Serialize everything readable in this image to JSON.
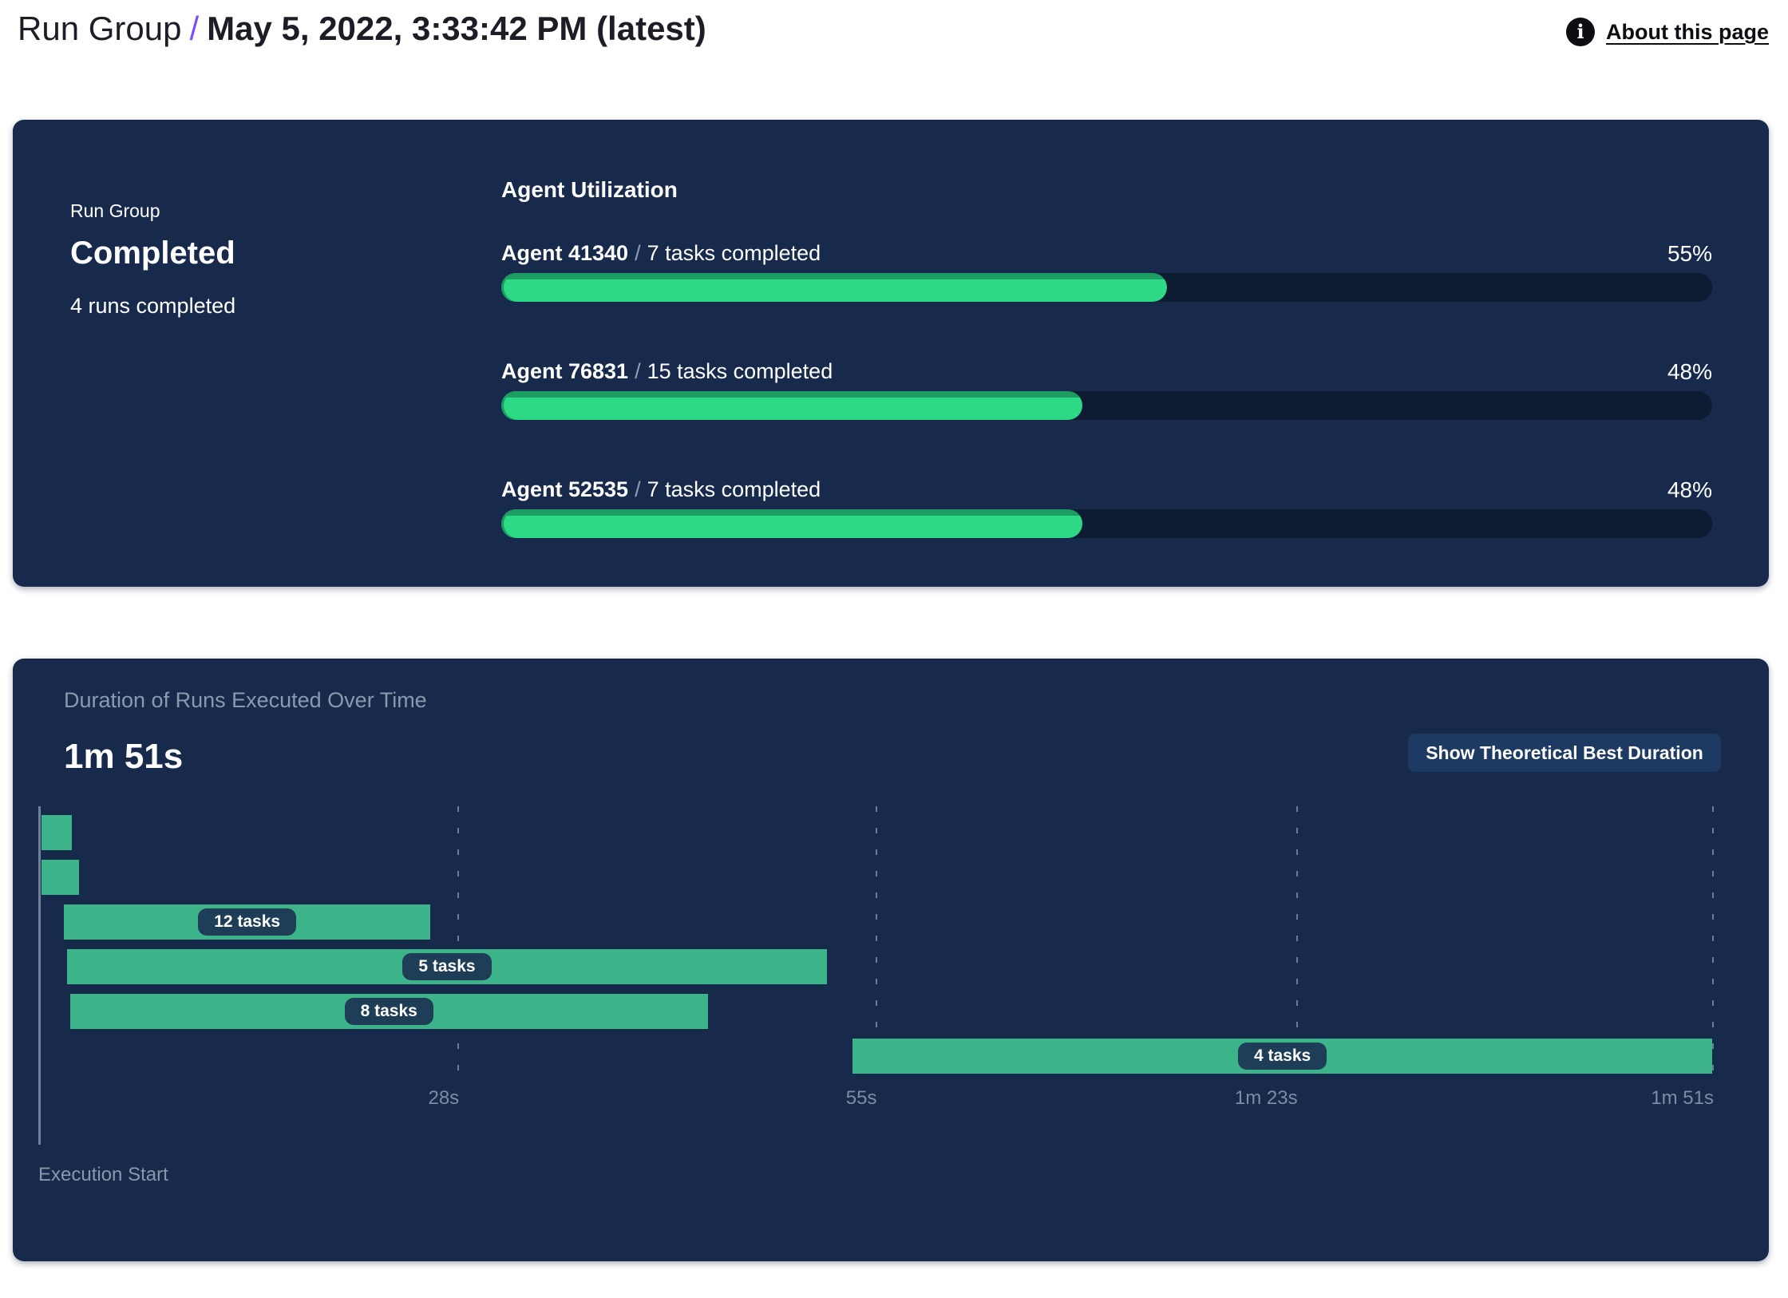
{
  "header": {
    "breadcrumb_root": "Run Group",
    "separator": "/",
    "title": "May 5, 2022, 3:33:42 PM (latest)",
    "about_link": "About this page",
    "info_icon": "i"
  },
  "status_panel": {
    "kicker": "Run Group",
    "status": "Completed",
    "summary": "4 runs completed",
    "utilization_title": "Agent Utilization",
    "agents": [
      {
        "name": "Agent 41340",
        "separator": "/",
        "tasks": "7 tasks completed",
        "pct": 55,
        "pct_label": "55%"
      },
      {
        "name": "Agent 76831",
        "separator": "/",
        "tasks": "15 tasks completed",
        "pct": 48,
        "pct_label": "48%"
      },
      {
        "name": "Agent 52535",
        "separator": "/",
        "tasks": "7 tasks completed",
        "pct": 48,
        "pct_label": "48%"
      }
    ]
  },
  "duration_panel": {
    "title": "Duration of Runs Executed Over Time",
    "total_duration": "1m 51s",
    "button_label": "Show Theoretical Best Duration",
    "execution_start_label": "Execution Start"
  },
  "chart_data": {
    "type": "gantt",
    "title": "Duration of Runs Executed Over Time",
    "total_duration_label": "1m 51s",
    "x_axis_seconds_max": 111,
    "x_origin_label": "Execution Start",
    "grid": true,
    "ticks": [
      {
        "seconds": 27.8,
        "label": "28s"
      },
      {
        "seconds": 55.5,
        "label": "55s"
      },
      {
        "seconds": 83.4,
        "label": "1m 23s"
      },
      {
        "seconds": 111,
        "label": "1m 51s"
      }
    ],
    "runs": [
      {
        "row": 0,
        "start_seconds": 0.2,
        "end_seconds": 2.2,
        "label": ""
      },
      {
        "row": 1,
        "start_seconds": 0.2,
        "end_seconds": 2.7,
        "label": ""
      },
      {
        "row": 2,
        "start_seconds": 1.7,
        "end_seconds": 26.0,
        "label": "12 tasks"
      },
      {
        "row": 3,
        "start_seconds": 1.9,
        "end_seconds": 52.3,
        "label": "5 tasks"
      },
      {
        "row": 4,
        "start_seconds": 2.1,
        "end_seconds": 44.4,
        "label": "8 tasks"
      },
      {
        "row": 5,
        "start_seconds": 54.0,
        "end_seconds": 111.0,
        "label": "4 tasks"
      }
    ]
  },
  "colors": {
    "panel_bg": "#172a4c",
    "progress_fill": "#2dd984",
    "progress_fill_edge": "#1d9c63",
    "progress_track": "#0d1b33",
    "gantt_bar": "#3cb389",
    "pill_bg": "#1e3d56",
    "accent_purple": "#7c4dff",
    "muted_text": "#8c99ad",
    "button_bg": "#1d3a63"
  }
}
